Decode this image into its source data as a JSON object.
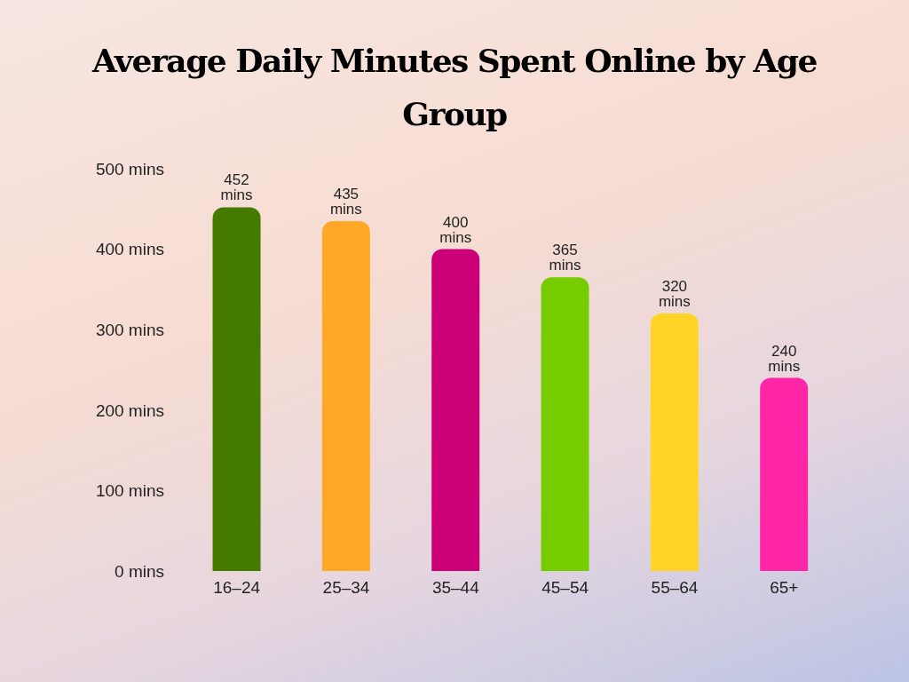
{
  "chart_data": {
    "type": "bar",
    "title": "Average Daily Minutes Spent Online by Age Group",
    "categories": [
      "16–24",
      "25–34",
      "35–44",
      "45–54",
      "55–64",
      "65+"
    ],
    "values": [
      452,
      435,
      400,
      365,
      320,
      240
    ],
    "colors": [
      "#457a00",
      "#ffa726",
      "#cc0077",
      "#77cc00",
      "#ffd426",
      "#ff26a8"
    ],
    "value_labels": [
      "452 mins",
      "435 mins",
      "400 mins",
      "365 mins",
      "320 mins",
      "240 mins"
    ],
    "ylim": [
      0,
      500
    ],
    "yticks": [
      {
        "value": 0,
        "label": "0 mins"
      },
      {
        "value": 100,
        "label": "100 mins"
      },
      {
        "value": 200,
        "label": "200 mins"
      },
      {
        "value": 300,
        "label": "300 mins"
      },
      {
        "value": 400,
        "label": "400 mins"
      },
      {
        "value": 500,
        "label": "500 mins"
      }
    ],
    "grid": false,
    "legend": false
  }
}
